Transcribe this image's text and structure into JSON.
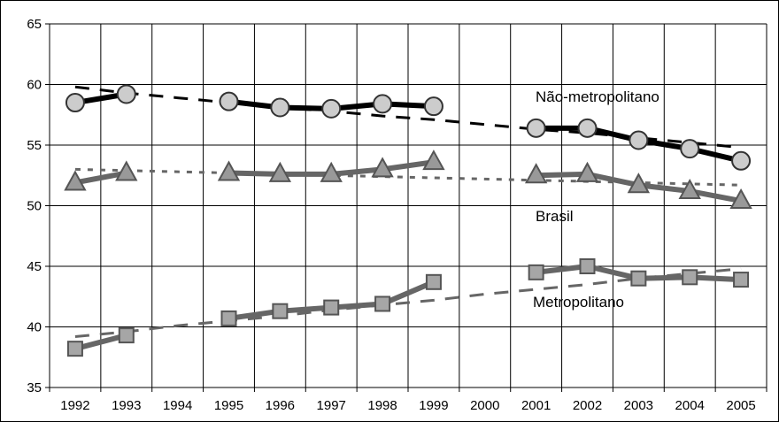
{
  "chart_data": {
    "type": "line",
    "categories": [
      "1992",
      "1993",
      "1994",
      "1995",
      "1996",
      "1997",
      "1998",
      "1999",
      "2000",
      "2001",
      "2002",
      "2003",
      "2004",
      "2005"
    ],
    "ylim": [
      35,
      65
    ],
    "yticks": [
      35,
      40,
      45,
      50,
      55,
      60,
      65
    ],
    "grid": true,
    "legend": "none",
    "series": [
      {
        "name": "Não-metropolitano",
        "marker": "circle",
        "color": "#000000",
        "marker_fill": "#cccccc",
        "values": [
          58.5,
          59.2,
          null,
          58.6,
          58.1,
          58.0,
          58.4,
          58.2,
          null,
          56.4,
          56.4,
          55.4,
          54.7,
          53.7
        ],
        "trend": [
          59.8,
          59.3,
          58.9,
          58.5,
          58.1,
          57.8,
          57.4,
          57.1,
          56.7,
          56.3,
          56.0,
          55.6,
          55.2,
          54.8
        ]
      },
      {
        "name": "Brasil",
        "marker": "triangle",
        "color": "#666666",
        "marker_fill": "#999999",
        "values": [
          51.9,
          52.7,
          null,
          52.7,
          52.6,
          52.6,
          53.0,
          53.6,
          null,
          52.5,
          52.6,
          51.7,
          51.2,
          50.4
        ],
        "trend": [
          53.0,
          52.9,
          52.8,
          52.7,
          52.6,
          52.5,
          52.4,
          52.3,
          52.2,
          52.1,
          52.0,
          51.9,
          51.8,
          51.7
        ]
      },
      {
        "name": "Metropolitano",
        "marker": "square",
        "color": "#666666",
        "marker_fill": "#a6a6a6",
        "values": [
          38.2,
          39.3,
          null,
          40.7,
          41.3,
          41.6,
          41.9,
          43.7,
          null,
          44.5,
          45.0,
          44.0,
          44.1,
          43.9
        ],
        "trend": [
          39.2,
          39.6,
          40.1,
          40.5,
          40.9,
          41.4,
          41.8,
          42.2,
          42.7,
          43.1,
          43.5,
          44.0,
          44.4,
          44.8
        ]
      }
    ]
  }
}
